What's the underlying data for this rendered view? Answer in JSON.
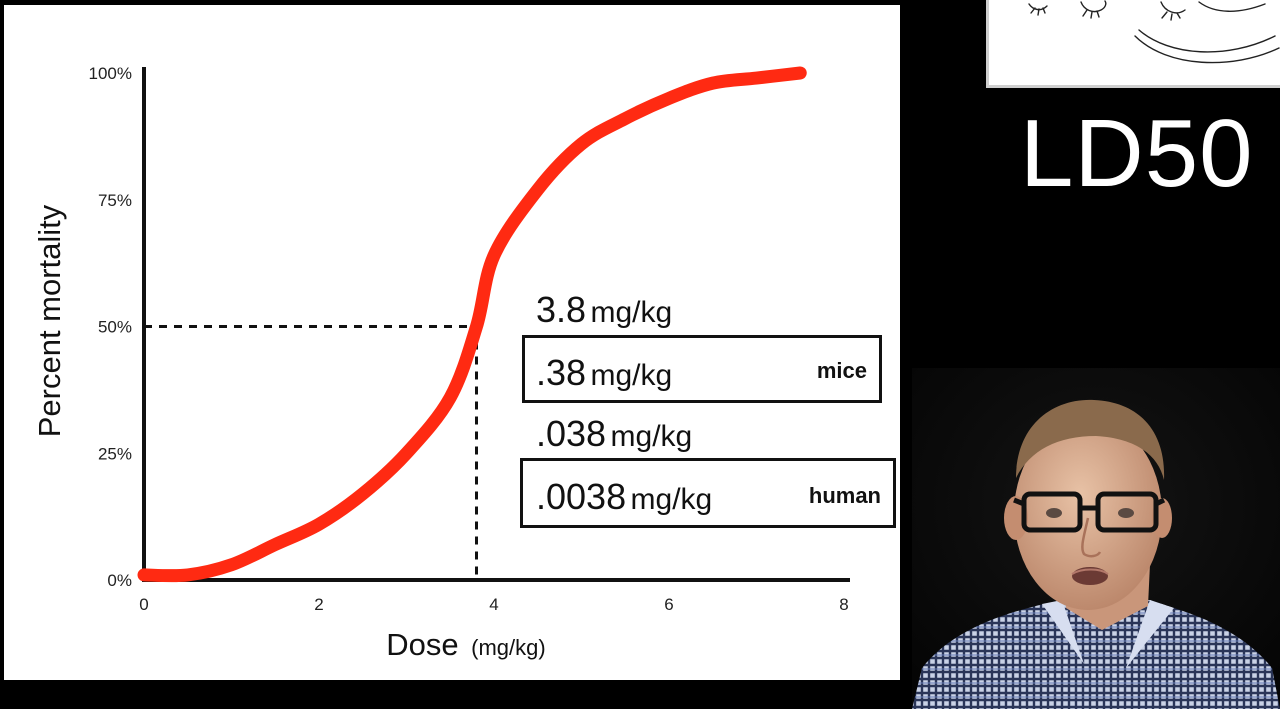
{
  "slide_title": "LD50",
  "chart_data": {
    "type": "line",
    "xlabel": "Dose",
    "xlabel_unit": "(mg/kg)",
    "ylabel": "Percent mortality",
    "xlim": [
      0,
      8
    ],
    "ylim": [
      0,
      100
    ],
    "x_ticks": [
      "0",
      "2",
      "4",
      "6",
      "8"
    ],
    "y_ticks": [
      "0%",
      "25%",
      "50%",
      "75%",
      "100%"
    ],
    "series": [
      {
        "color": "#ff2a12",
        "x": [
          0,
          0.5,
          1.0,
          1.5,
          2.0,
          2.5,
          3.0,
          3.5,
          3.8,
          4.0,
          4.5,
          5.0,
          5.5,
          6.0,
          6.5,
          7.0,
          7.5
        ],
        "y": [
          1,
          1,
          3,
          7,
          11,
          17,
          25,
          36,
          50,
          64,
          77,
          86,
          91,
          95,
          98,
          99,
          100
        ]
      }
    ],
    "ld50_marker": {
      "x": 3.8,
      "y": 50
    }
  },
  "dose_values": [
    {
      "value": "3.8",
      "unit": "mg/kg",
      "boxed": false,
      "species": ""
    },
    {
      "value": ".38",
      "unit": "mg/kg",
      "boxed": true,
      "species": "mice"
    },
    {
      "value": ".038",
      "unit": "mg/kg",
      "boxed": false,
      "species": ""
    },
    {
      "value": ".0038",
      "unit": "mg/kg",
      "boxed": true,
      "species": "human"
    }
  ]
}
